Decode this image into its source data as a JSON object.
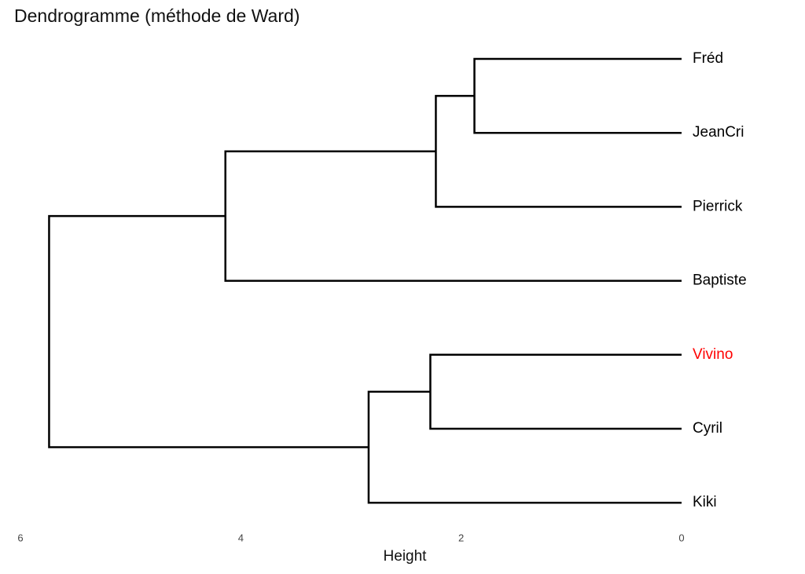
{
  "chart_data": {
    "type": "dendrogram",
    "title": "Dendrogramme (méthode de Ward)",
    "leaves": [
      "Fréd",
      "JeanCri",
      "Pierrick",
      "Baptiste",
      "Vivino",
      "Cyril",
      "Kiki"
    ],
    "leaf_colors": [
      "#000000",
      "#000000",
      "#000000",
      "#000000",
      "#ff0000",
      "#000000",
      "#000000"
    ],
    "merges": [
      {
        "children": [
          0,
          1
        ],
        "height": 1.88
      },
      {
        "children": [
          7,
          2
        ],
        "height": 2.23
      },
      {
        "children": [
          8,
          3
        ],
        "height": 4.14
      },
      {
        "children": [
          4,
          5
        ],
        "height": 2.28
      },
      {
        "children": [
          10,
          6
        ],
        "height": 2.84
      },
      {
        "children": [
          9,
          11
        ],
        "height": 5.74
      }
    ],
    "line_color": "#000000",
    "xlabel": "Height",
    "xlim": [
      6,
      0
    ],
    "xticks": [
      6,
      4,
      2,
      0
    ]
  }
}
